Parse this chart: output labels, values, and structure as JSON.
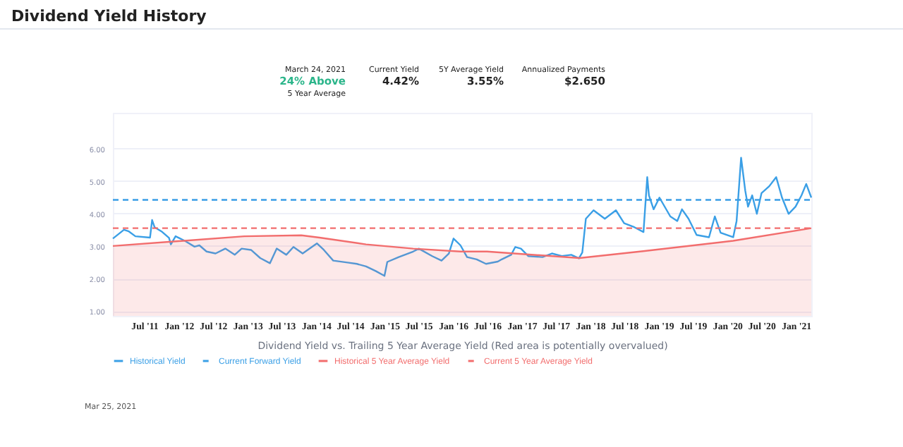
{
  "chart_data": {
    "type": "line",
    "title": "Dividend Yield History",
    "xlabel": "Dividend Yield vs. Trailing 5 Year Average Yield (Red area is potentially overvalued)",
    "annotations": [
      "March 24, 2021",
      "24% Above",
      "5 Year Average",
      "Current Yield",
      "4.42%",
      "5Y Average Yield",
      "3.55%",
      "Annualized Payments",
      "$2.650",
      "Mar 25, 2021"
    ],
    "xlim": [
      "2011-01-15",
      "2021-03-24"
    ],
    "ylim": [
      0.85,
      7.1
    ],
    "xticks": [
      {
        "value": "2011-07-01",
        "label": "Jul '11"
      },
      {
        "value": "2012-01-01",
        "label": "Jan '12"
      },
      {
        "value": "2012-07-01",
        "label": "Jul '12"
      },
      {
        "value": "2013-01-01",
        "label": "Jan '13"
      },
      {
        "value": "2013-07-01",
        "label": "Jul '13"
      },
      {
        "value": "2014-01-01",
        "label": "Jan '14"
      },
      {
        "value": "2014-07-01",
        "label": "Jul '14"
      },
      {
        "value": "2015-01-01",
        "label": "Jan '15"
      },
      {
        "value": "2015-07-01",
        "label": "Jul '15"
      },
      {
        "value": "2016-01-01",
        "label": "Jan '16"
      },
      {
        "value": "2016-07-01",
        "label": "Jul '16"
      },
      {
        "value": "2017-01-01",
        "label": "Jan '17"
      },
      {
        "value": "2017-07-01",
        "label": "Jul '17"
      },
      {
        "value": "2018-01-01",
        "label": "Jan '18"
      },
      {
        "value": "2018-07-01",
        "label": "Jul '18"
      },
      {
        "value": "2019-01-01",
        "label": "Jan '19"
      },
      {
        "value": "2019-07-01",
        "label": "Jul '19"
      },
      {
        "value": "2020-01-01",
        "label": "Jan '20"
      },
      {
        "value": "2020-07-01",
        "label": "Jul '20"
      },
      {
        "value": "2021-01-01",
        "label": "Jan '21"
      }
    ],
    "yticks": [
      {
        "value": 1,
        "label": "1.00"
      },
      {
        "value": 2,
        "label": "2.00"
      },
      {
        "value": 3,
        "label": "3.00"
      },
      {
        "value": 4,
        "label": "4.00"
      },
      {
        "value": 5,
        "label": "5.00"
      },
      {
        "value": 6,
        "label": "6.00"
      }
    ],
    "grid": "y",
    "legend": "bottom",
    "series": [
      {
        "name": "Historical Yield",
        "line_style": "solid",
        "color": "#3a9fe6",
        "x": [
          "2011-01-15",
          "2011-03-15",
          "2011-04-10",
          "2011-05-15",
          "2011-08-01",
          "2011-08-12",
          "2011-08-25",
          "2011-10-01",
          "2011-11-10",
          "2011-11-20",
          "2011-12-15",
          "2012-02-05",
          "2012-03-25",
          "2012-04-20",
          "2012-05-28",
          "2012-07-15",
          "2012-09-05",
          "2012-10-25",
          "2012-12-01",
          "2013-01-20",
          "2013-03-10",
          "2013-05-01",
          "2013-06-06",
          "2013-07-27",
          "2013-09-03",
          "2013-10-22",
          "2014-01-06",
          "2014-02-12",
          "2014-04-03",
          "2014-06-18",
          "2014-08-07",
          "2014-09-25",
          "2014-11-15",
          "2015-01-01",
          "2015-01-16",
          "2015-03-18",
          "2015-06-03",
          "2015-07-03",
          "2015-09-12",
          "2015-11-01",
          "2015-12-10",
          "2016-01-04",
          "2016-02-10",
          "2016-03-16",
          "2016-05-06",
          "2016-06-25",
          "2016-08-27",
          "2016-09-17",
          "2016-11-06",
          "2016-11-28",
          "2016-12-28",
          "2017-02-05",
          "2017-04-22",
          "2017-06-11",
          "2017-08-03",
          "2017-09-22",
          "2017-11-02",
          "2017-11-20",
          "2017-12-09",
          "2018-01-19",
          "2018-02-13",
          "2018-03-20",
          "2018-05-18",
          "2018-07-01",
          "2018-08-24",
          "2018-10-12",
          "2018-11-01",
          "2018-11-10",
          "2018-12-05",
          "2019-01-05",
          "2019-03-04",
          "2019-04-10",
          "2019-05-05",
          "2019-06-09",
          "2019-07-22",
          "2019-09-26",
          "2019-10-27",
          "2019-11-27",
          "2020-02-02",
          "2020-02-20",
          "2020-03-15",
          "2020-04-06",
          "2020-04-21",
          "2020-05-13",
          "2020-06-07",
          "2020-07-02",
          "2020-08-12",
          "2020-09-18",
          "2020-10-19",
          "2020-11-23",
          "2020-12-30",
          "2021-01-31",
          "2021-02-25",
          "2021-03-24"
        ],
        "values": [
          3.23,
          3.5,
          3.45,
          3.3,
          3.26,
          3.8,
          3.58,
          3.45,
          3.25,
          3.05,
          3.3,
          3.15,
          2.98,
          3.02,
          2.83,
          2.77,
          2.92,
          2.73,
          2.92,
          2.88,
          2.63,
          2.47,
          2.92,
          2.73,
          2.97,
          2.77,
          3.08,
          2.88,
          2.55,
          2.49,
          2.45,
          2.37,
          2.23,
          2.08,
          2.51,
          2.66,
          2.83,
          2.92,
          2.69,
          2.55,
          2.77,
          3.23,
          3.02,
          2.66,
          2.59,
          2.45,
          2.52,
          2.59,
          2.73,
          2.97,
          2.92,
          2.69,
          2.66,
          2.77,
          2.69,
          2.73,
          2.62,
          2.8,
          3.84,
          4.1,
          3.99,
          3.84,
          4.1,
          3.7,
          3.58,
          3.43,
          5.12,
          4.56,
          4.13,
          4.49,
          3.91,
          3.77,
          4.13,
          3.84,
          3.34,
          3.27,
          3.91,
          3.41,
          3.27,
          3.77,
          5.72,
          4.71,
          4.21,
          4.56,
          3.99,
          4.63,
          4.84,
          5.12,
          4.49,
          3.99,
          4.21,
          4.56,
          4.91,
          4.49
        ]
      },
      {
        "name": "Current Forward Yield",
        "line_style": "dashed",
        "color": "#3a9fe6",
        "x": [
          "2011-01-15",
          "2021-03-24"
        ],
        "values": [
          4.42,
          4.42
        ]
      },
      {
        "name": "Historical 5 Year Average Yield",
        "type": "area",
        "line_style": "solid",
        "color": "#f26d6d",
        "x": [
          "2011-01-15",
          "2011-12-30",
          "2012-12-15",
          "2013-10-15",
          "2014-01-20",
          "2014-09-25",
          "2015-06-03",
          "2016-02-10",
          "2016-07-01",
          "2017-11-05",
          "2018-10-10",
          "2020-02-02",
          "2021-03-24"
        ],
        "values": [
          3.0,
          3.15,
          3.3,
          3.33,
          3.26,
          3.05,
          2.92,
          2.83,
          2.83,
          2.63,
          2.84,
          3.16,
          3.55
        ]
      },
      {
        "name": "Current 5 Year Average Yield",
        "line_style": "dashed",
        "color": "#f26d6d",
        "x": [
          "2011-01-15",
          "2021-03-24"
        ],
        "values": [
          3.55,
          3.55
        ]
      }
    ]
  }
}
